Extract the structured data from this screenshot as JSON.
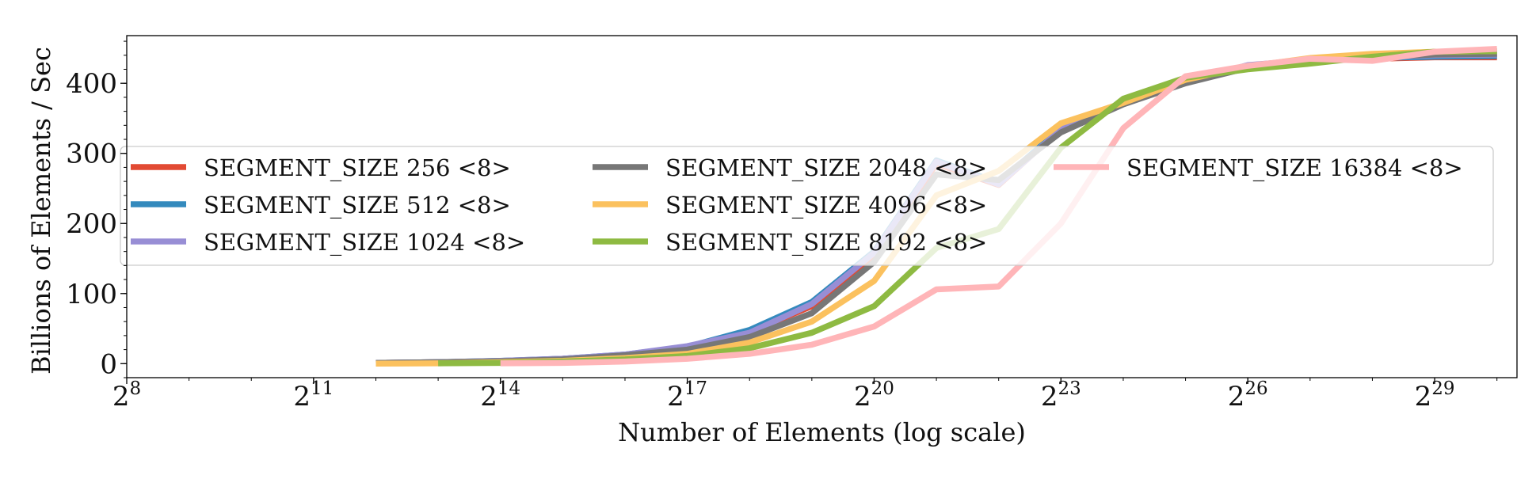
{
  "chart_data": {
    "type": "line",
    "xlabel": "Number of Elements (log scale)",
    "ylabel": "Billions of Elements / Sec",
    "x_scale": "log2",
    "xlim": [
      256,
      1342177280
    ],
    "ylim": [
      -20,
      468
    ],
    "x_ticks": [
      256,
      2048,
      16384,
      131072,
      1048576,
      8388608,
      67108864,
      536870912
    ],
    "x_tick_labels": [
      {
        "base": "2",
        "exp": "8"
      },
      {
        "base": "2",
        "exp": "11"
      },
      {
        "base": "2",
        "exp": "14"
      },
      {
        "base": "2",
        "exp": "17"
      },
      {
        "base": "2",
        "exp": "20"
      },
      {
        "base": "2",
        "exp": "23"
      },
      {
        "base": "2",
        "exp": "26"
      },
      {
        "base": "2",
        "exp": "29"
      }
    ],
    "y_ticks": [
      0,
      100,
      200,
      300,
      400
    ],
    "grid": false,
    "legend": {
      "placement": "center",
      "columns": 3
    },
    "series": [
      {
        "name": "SEGMENT_SIZE 256 <8>",
        "color": "#e24a33",
        "x": [
          4096,
          8192,
          16384,
          32768,
          65536,
          131072,
          262144,
          524288,
          1048576,
          2097152,
          4194304,
          8388608,
          16777216,
          33554432,
          67108864,
          134217728,
          268435456,
          536870912,
          1073741824
        ],
        "y": [
          1,
          2,
          3.5,
          7,
          12,
          22,
          45,
          82,
          155,
          285,
          255,
          335,
          372,
          402,
          422,
          432,
          435,
          437,
          437
        ]
      },
      {
        "name": "SEGMENT_SIZE 512 <8>",
        "color": "#348abd",
        "x": [
          4096,
          8192,
          16384,
          32768,
          65536,
          131072,
          262144,
          524288,
          1048576,
          2097152,
          4194304,
          8388608,
          16777216,
          33554432,
          67108864,
          134217728,
          268435456,
          536870912,
          1073741824
        ],
        "y": [
          1,
          2,
          4,
          7,
          13,
          24,
          48,
          88,
          160,
          290,
          258,
          336,
          373,
          403,
          423,
          433,
          436,
          438,
          439
        ]
      },
      {
        "name": "SEGMENT_SIZE 1024 <8>",
        "color": "#988ed5",
        "x": [
          4096,
          8192,
          16384,
          32768,
          65536,
          131072,
          262144,
          524288,
          1048576,
          2097152,
          4194304,
          8388608,
          16777216,
          33554432,
          67108864,
          134217728,
          268435456,
          536870912,
          1073741824
        ],
        "y": [
          1,
          2,
          4,
          7,
          13,
          25,
          44,
          85,
          158,
          288,
          256,
          334,
          372,
          402,
          426,
          433,
          437,
          440,
          441
        ]
      },
      {
        "name": "SEGMENT_SIZE 2048 <8>",
        "color": "#777777",
        "x": [
          4096,
          8192,
          16384,
          32768,
          65536,
          131072,
          262144,
          524288,
          1048576,
          2097152,
          4194304,
          8388608,
          16777216,
          33554432,
          67108864,
          134217728,
          268435456,
          536870912,
          1073741824
        ],
        "y": [
          1,
          2,
          3.5,
          6,
          12,
          20,
          38,
          72,
          145,
          270,
          262,
          330,
          370,
          400,
          422,
          432,
          437,
          441,
          442
        ]
      },
      {
        "name": "SEGMENT_SIZE 4096 <8>",
        "color": "#fbc15e",
        "x": [
          4096,
          8192,
          16384,
          32768,
          65536,
          131072,
          262144,
          524288,
          1048576,
          2097152,
          4194304,
          8388608,
          16777216,
          33554432,
          67108864,
          134217728,
          268435456,
          536870912,
          1073741824
        ],
        "y": [
          0,
          0.5,
          2,
          4,
          8,
          14,
          30,
          60,
          118,
          240,
          275,
          343,
          372,
          405,
          424,
          436,
          442,
          445,
          446
        ]
      },
      {
        "name": "SEGMENT_SIZE 8192 <8>",
        "color": "#8eba42",
        "x": [
          8192,
          16384,
          32768,
          65536,
          131072,
          262144,
          524288,
          1048576,
          2097152,
          4194304,
          8388608,
          16777216,
          33554432,
          67108864,
          134217728,
          268435456,
          536870912,
          1073741824
        ],
        "y": [
          0.5,
          1,
          3,
          6,
          11,
          22,
          44,
          82,
          165,
          192,
          308,
          378,
          408,
          420,
          428,
          438,
          445,
          446
        ]
      },
      {
        "name": "SEGMENT_SIZE 16384 <8>",
        "color": "#ffb5b8",
        "x": [
          16384,
          32768,
          65536,
          131072,
          262144,
          524288,
          1048576,
          2097152,
          4194304,
          8388608,
          16777216,
          33554432,
          67108864,
          134217728,
          268435456,
          536870912,
          1073741824
        ],
        "y": [
          0.5,
          1,
          3,
          7,
          14,
          27,
          53,
          106,
          110,
          200,
          336,
          410,
          425,
          435,
          432,
          445,
          449
        ]
      }
    ]
  }
}
